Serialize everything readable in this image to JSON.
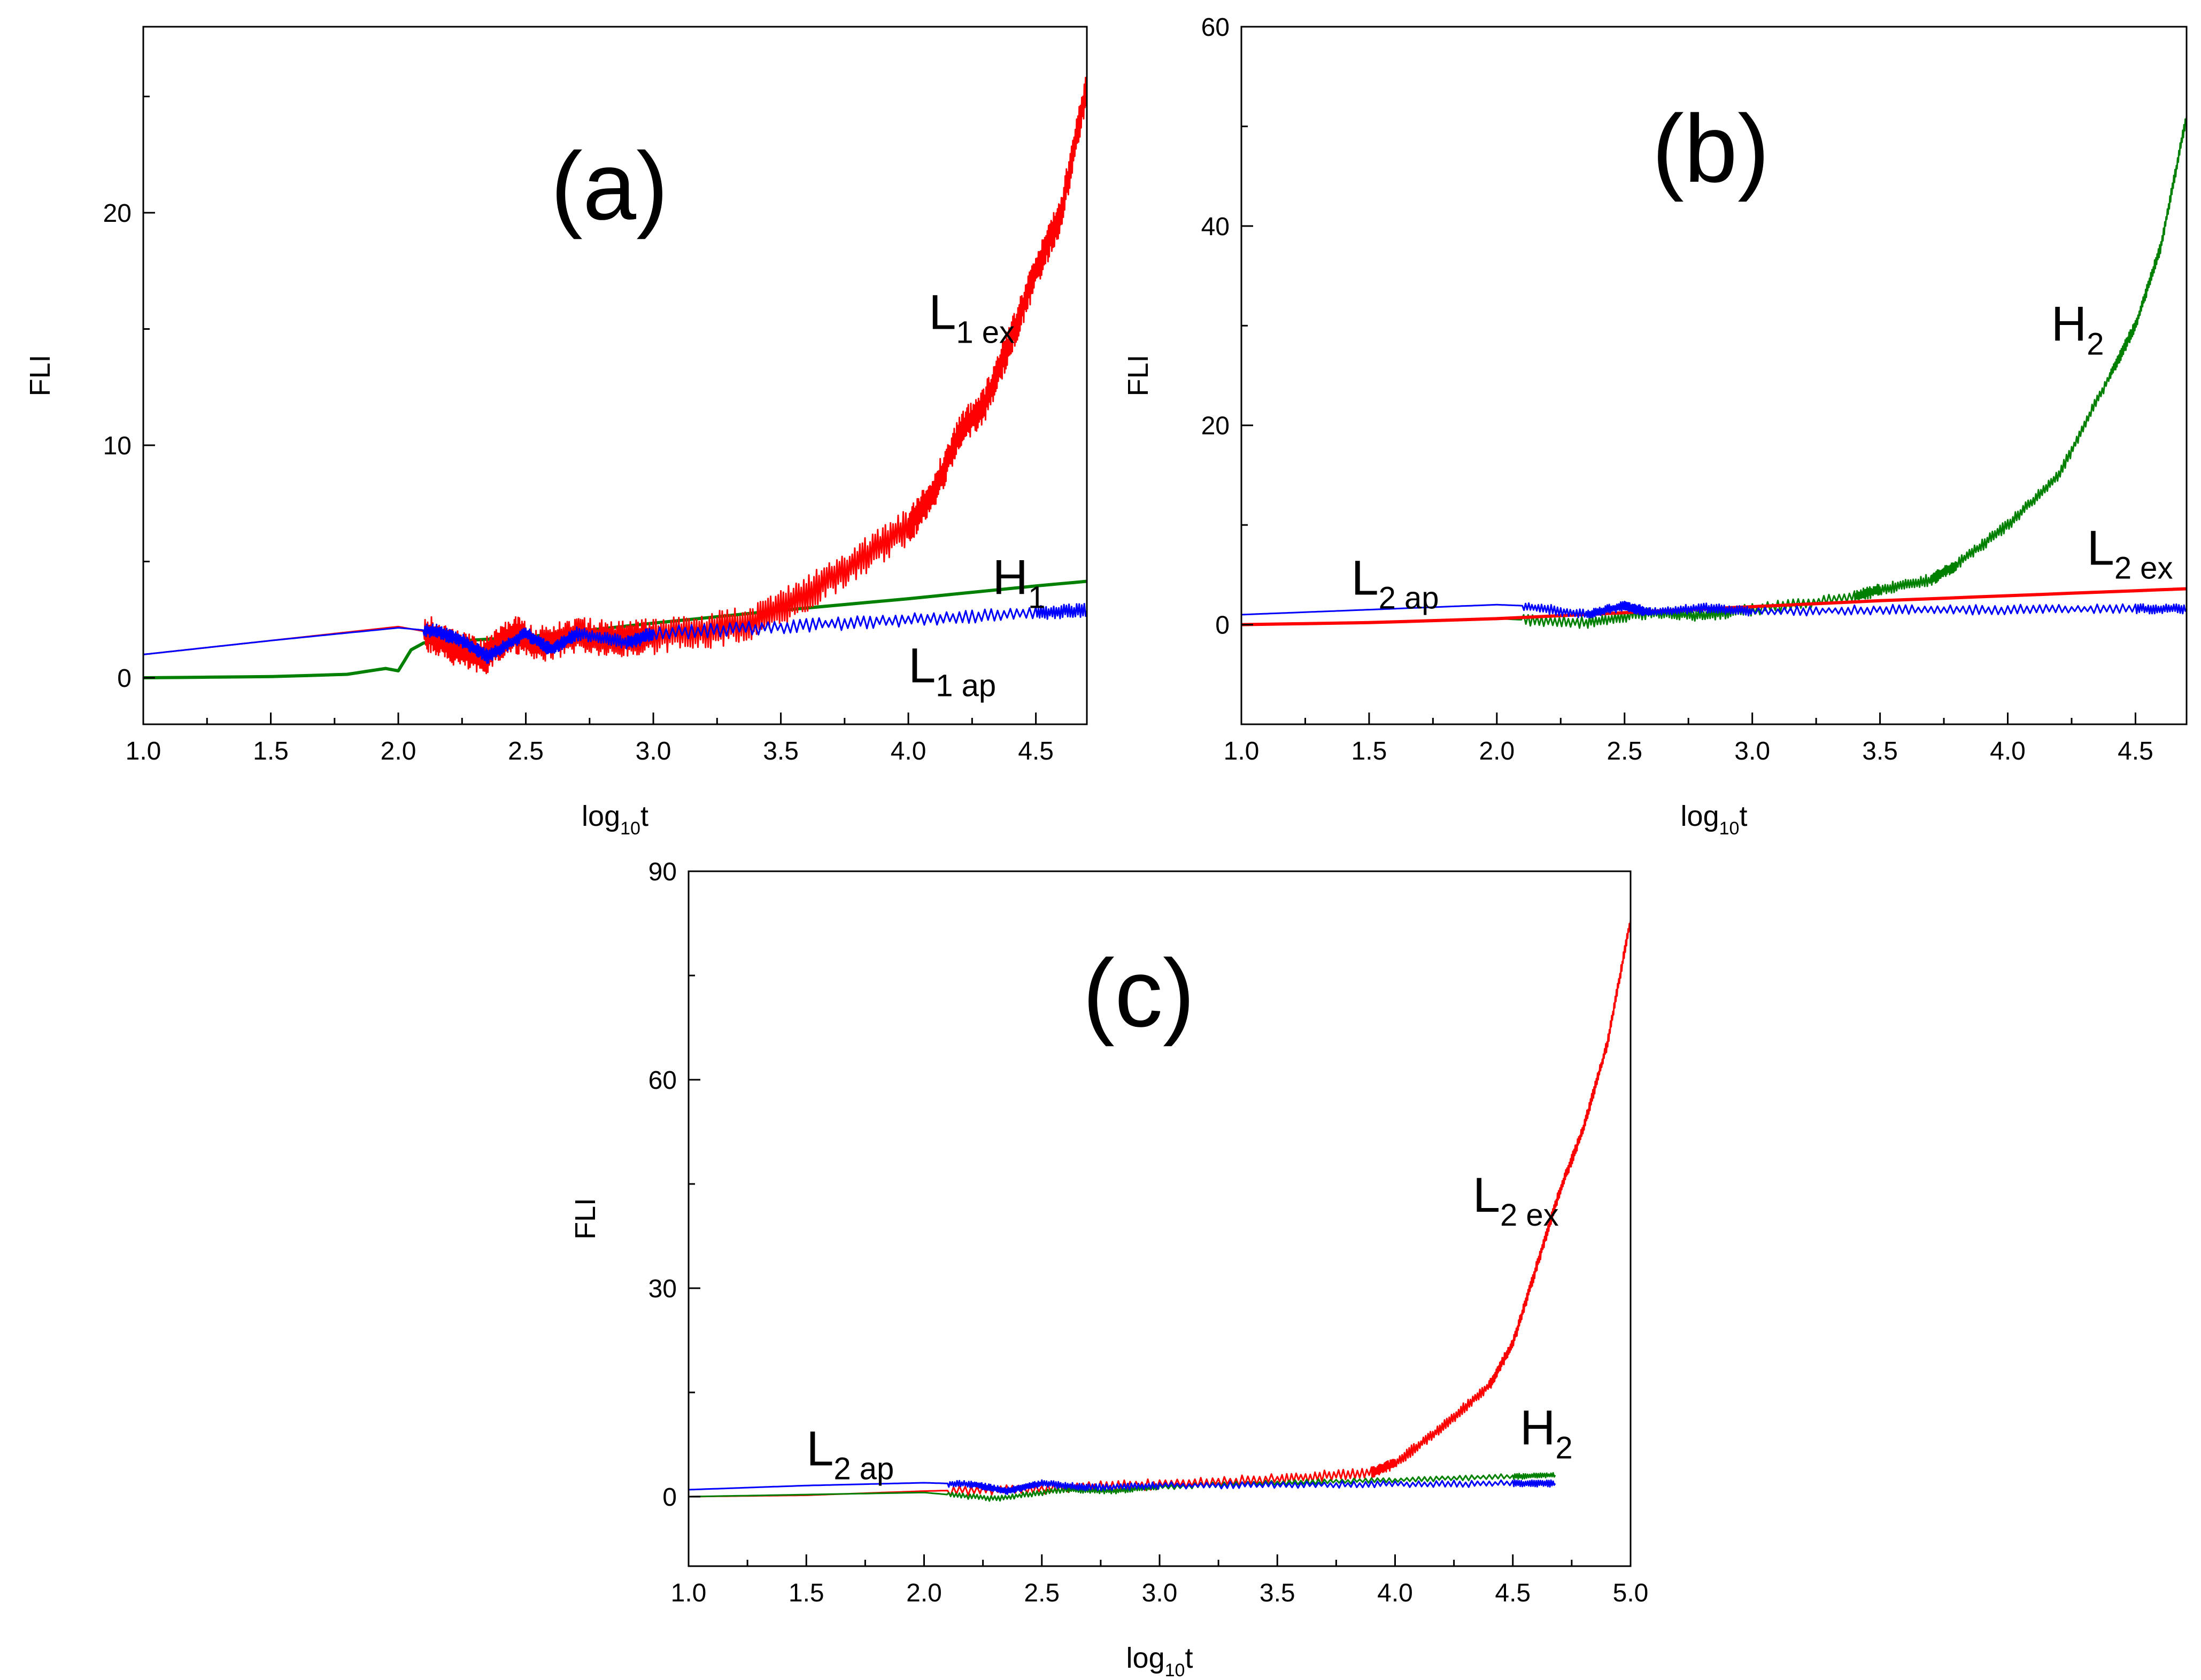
{
  "figure": {
    "description_title": "FLI vs log10 t, three panels"
  },
  "colors": {
    "red": "#ff0000",
    "green": "#008000",
    "blue": "#0000ff",
    "axis": "#000000"
  },
  "chart_data": [
    {
      "id": "a",
      "type": "line",
      "panel_label": "(a)",
      "xlabel_main": "log",
      "xlabel_sub": "10",
      "xlabel_tail": "t",
      "ylabel": "FLI",
      "xlim": [
        1.0,
        4.7
      ],
      "ylim": [
        -2,
        28
      ],
      "xticks": [
        1.0,
        1.5,
        2.0,
        2.5,
        3.0,
        3.5,
        4.0,
        4.5
      ],
      "xtick_labels": [
        "1.0",
        "1.5",
        "2.0",
        "2.5",
        "3.0",
        "3.5",
        "4.0",
        "4.5"
      ],
      "yticks": [
        0,
        10,
        20
      ],
      "ytick_labels": [
        "0",
        "10",
        "20"
      ],
      "series": [
        {
          "name": "H1",
          "label_main": "H",
          "label_sub": "1",
          "color": "green",
          "label_pos": [
            4.33,
            3.6
          ],
          "x": [
            1.0,
            1.5,
            1.8,
            1.95,
            2.0,
            2.05,
            2.1,
            2.5,
            3.0,
            3.5,
            4.0,
            4.5,
            4.7
          ],
          "y": [
            0.0,
            0.05,
            0.15,
            0.4,
            0.3,
            1.2,
            1.5,
            1.75,
            2.35,
            2.9,
            3.4,
            3.95,
            4.15
          ],
          "osc": 0
        },
        {
          "name": "L1 ex",
          "label_main": "L",
          "label_sub": "1 ex",
          "color": "red",
          "label_pos": [
            4.08,
            15.0
          ],
          "x": [
            1.0,
            1.5,
            2.0,
            2.1,
            2.2,
            2.33,
            2.45,
            2.55,
            2.7,
            2.85,
            3.0,
            3.2,
            3.4,
            3.6,
            3.8,
            4.0,
            4.1,
            4.2,
            4.3,
            4.4,
            4.5,
            4.6,
            4.7
          ],
          "y": [
            1.0,
            1.6,
            2.2,
            2.0,
            1.4,
            0.85,
            1.9,
            1.4,
            1.9,
            1.6,
            1.8,
            2.0,
            2.4,
            3.6,
            5.0,
            6.5,
            8.0,
            10.5,
            11.8,
            14.5,
            17.5,
            20.0,
            25.5
          ],
          "osc": 0.8
        },
        {
          "name": "L1 ap",
          "label_main": "L",
          "label_sub": "1 ap",
          "color": "blue",
          "label_pos": [
            4.0,
            -0.2
          ],
          "x": [
            1.0,
            1.5,
            2.0,
            2.15,
            2.25,
            2.35,
            2.5,
            2.6,
            2.7,
            2.9,
            3.0,
            3.5,
            4.0,
            4.5,
            4.7
          ],
          "y": [
            1.0,
            1.6,
            2.15,
            2.0,
            1.6,
            0.9,
            1.9,
            1.2,
            1.9,
            1.5,
            1.9,
            2.2,
            2.5,
            2.8,
            2.9
          ],
          "osc": 0.3
        }
      ]
    },
    {
      "id": "b",
      "type": "line",
      "panel_label": "(b)",
      "xlabel_main": "log",
      "xlabel_sub": "10",
      "xlabel_tail": "t",
      "ylabel": "FLI",
      "xlim": [
        1.0,
        4.7
      ],
      "ylim": [
        -10,
        60
      ],
      "xticks": [
        1.0,
        1.5,
        2.0,
        2.5,
        3.0,
        3.5,
        4.0,
        4.5
      ],
      "xtick_labels": [
        "1.0",
        "1.5",
        "2.0",
        "2.5",
        "3.0",
        "3.5",
        "4.0",
        "4.5"
      ],
      "yticks": [
        0,
        20,
        40,
        60
      ],
      "ytick_labels": [
        "0",
        "20",
        "40",
        "60"
      ],
      "series": [
        {
          "name": "H2",
          "label_main": "H",
          "label_sub": "2",
          "color": "green",
          "label_pos": [
            4.17,
            28.5
          ],
          "x": [
            1.0,
            1.5,
            2.0,
            2.35,
            2.6,
            2.8,
            3.0,
            3.4,
            3.5,
            3.7,
            3.8,
            4.0,
            4.2,
            4.4,
            4.5,
            4.6,
            4.7
          ],
          "y": [
            0.0,
            0.2,
            0.6,
            0.2,
            1.2,
            0.9,
            1.5,
            2.8,
            3.5,
            4.5,
            6.0,
            10.0,
            15.0,
            25.0,
            30.0,
            38.0,
            51.0
          ],
          "osc": 0.6
        },
        {
          "name": "L2 ex",
          "label_main": "L",
          "label_sub": "2 ex",
          "color": "red",
          "label_pos": [
            4.31,
            6.0
          ],
          "x": [
            1.0,
            1.5,
            2.0,
            2.5,
            3.0,
            3.5,
            4.0,
            4.5,
            4.7
          ],
          "y": [
            0.0,
            0.2,
            0.6,
            1.2,
            1.8,
            2.4,
            2.9,
            3.4,
            3.6
          ],
          "osc": 0
        },
        {
          "name": "L2 ap",
          "label_main": "L",
          "label_sub": "2 ap",
          "color": "blue",
          "label_pos": [
            1.43,
            3.0
          ],
          "x": [
            1.0,
            1.5,
            2.0,
            2.1,
            2.35,
            2.5,
            2.6,
            2.8,
            3.0,
            3.5,
            4.0,
            4.5,
            4.7
          ],
          "y": [
            1.0,
            1.5,
            2.0,
            1.9,
            1.0,
            1.9,
            1.2,
            1.7,
            1.3,
            1.5,
            1.5,
            1.6,
            1.6
          ],
          "osc": 0.5
        }
      ]
    },
    {
      "id": "c",
      "type": "line",
      "panel_label": "(c)",
      "xlabel_main": "log",
      "xlabel_sub": "10",
      "xlabel_tail": "t",
      "ylabel": "FLI",
      "xlim": [
        1.0,
        5.0
      ],
      "ylim": [
        -10,
        90
      ],
      "xticks": [
        1.0,
        1.5,
        2.0,
        2.5,
        3.0,
        3.5,
        4.0,
        4.5,
        5.0
      ],
      "xtick_labels": [
        "1.0",
        "1.5",
        "2.0",
        "2.5",
        "3.0",
        "3.5",
        "4.0",
        "4.5",
        "5.0"
      ],
      "yticks": [
        0,
        30,
        60,
        90
      ],
      "ytick_labels": [
        "0",
        "30",
        "60",
        "90"
      ],
      "series": [
        {
          "name": "L2 ex",
          "label_main": "L",
          "label_sub": "2 ex",
          "color": "red",
          "label_pos": [
            4.33,
            41.0
          ],
          "x": [
            1.0,
            1.5,
            2.0,
            2.5,
            3.0,
            3.5,
            3.9,
            4.0,
            4.2,
            4.4,
            4.5,
            4.6,
            4.7,
            4.8,
            4.9,
            5.0
          ],
          "y": [
            0.0,
            0.2,
            0.8,
            1.2,
            1.8,
            2.5,
            3.5,
            4.8,
            10.0,
            16.0,
            22.0,
            33.0,
            44.0,
            53.0,
            65.0,
            83.0
          ],
          "osc": 0.8
        },
        {
          "name": "H2",
          "label_main": "H",
          "label_sub": "2",
          "color": "green",
          "label_pos": [
            4.53,
            7.5
          ],
          "x": [
            1.0,
            2.0,
            2.3,
            2.6,
            2.8,
            3.0,
            3.5,
            4.0,
            4.5,
            4.68
          ],
          "y": [
            0.0,
            0.6,
            -0.3,
            1.0,
            0.8,
            1.4,
            2.0,
            2.4,
            2.9,
            3.1
          ],
          "osc": 0.4
        },
        {
          "name": "L2 ap",
          "label_main": "L",
          "label_sub": "2 ap",
          "color": "blue",
          "label_pos": [
            1.5,
            4.5
          ],
          "x": [
            1.0,
            1.5,
            2.0,
            2.2,
            2.35,
            2.5,
            2.7,
            3.0,
            3.5,
            4.0,
            4.5,
            4.68
          ],
          "y": [
            1.0,
            1.6,
            2.0,
            1.8,
            0.8,
            1.9,
            1.3,
            1.6,
            1.7,
            1.8,
            1.9,
            1.9
          ],
          "osc": 0.5
        }
      ]
    }
  ]
}
